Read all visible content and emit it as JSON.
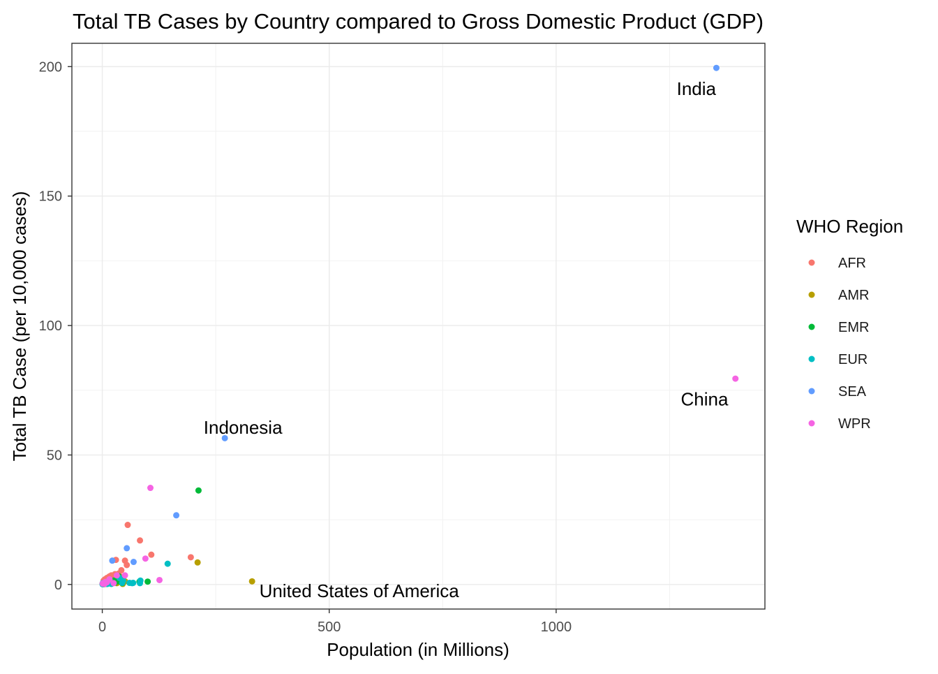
{
  "chart_data": {
    "type": "scatter",
    "title": "Total TB Cases by Country compared to Gross Domestic Product (GDP)",
    "xlabel": "Population (in Millions)",
    "ylabel": "Total TB Case (per 10,000 cases)",
    "xlim": [
      -67,
      1460
    ],
    "ylim": [
      -9.5,
      209
    ],
    "x_ticks": [
      0,
      500,
      1000
    ],
    "x_tick_labels": [
      "0",
      "500",
      "1000"
    ],
    "y_ticks": [
      0,
      50,
      100,
      150,
      200
    ],
    "y_tick_labels": [
      "0",
      "50",
      "100",
      "150",
      "200"
    ],
    "grid": true,
    "legend": {
      "title": "WHO Region",
      "position": "right",
      "entries": [
        {
          "name": "AFR",
          "color": "#F8766D"
        },
        {
          "name": "AMR",
          "color": "#B79F00"
        },
        {
          "name": "EMR",
          "color": "#00BA38"
        },
        {
          "name": "EUR",
          "color": "#00BFC4"
        },
        {
          "name": "SEA",
          "color": "#619CFF"
        },
        {
          "name": "WPR",
          "color": "#F564E3"
        }
      ]
    },
    "series": [
      {
        "name": "AFR",
        "points": [
          [
            0.5,
            0.3
          ],
          [
            2,
            0.8
          ],
          [
            3,
            1.5
          ],
          [
            5,
            0.5
          ],
          [
            6,
            2
          ],
          [
            8,
            1
          ],
          [
            10,
            2.5
          ],
          [
            12,
            1.5
          ],
          [
            15,
            3
          ],
          [
            18,
            2
          ],
          [
            20,
            3.5
          ],
          [
            22,
            1
          ],
          [
            25,
            2
          ],
          [
            28,
            1.8
          ],
          [
            30,
            9.5
          ],
          [
            33,
            2.5
          ],
          [
            40,
            3
          ],
          [
            42,
            5.5
          ],
          [
            45,
            1.8
          ],
          [
            50,
            9.2
          ],
          [
            54,
            7.5
          ],
          [
            56,
            23
          ],
          [
            83,
            17
          ],
          [
            108,
            11.5
          ],
          [
            195,
            10.5
          ],
          [
            28,
            4
          ],
          [
            14,
            2.8
          ],
          [
            36,
            4.2
          ],
          [
            9,
            1.2
          ],
          [
            17,
            3.2
          ]
        ]
      },
      {
        "name": "AMR",
        "points": [
          [
            1,
            0.2
          ],
          [
            4,
            0.1
          ],
          [
            8,
            0.5
          ],
          [
            11,
            0.3
          ],
          [
            17,
            0.5
          ],
          [
            20,
            0.3
          ],
          [
            28,
            0.8
          ],
          [
            32,
            0.5
          ],
          [
            45,
            0.2
          ],
          [
            50,
            1.2
          ],
          [
            210,
            8.5
          ],
          [
            330,
            1.2
          ]
        ]
      },
      {
        "name": "EMR",
        "points": [
          [
            2,
            0.2
          ],
          [
            5,
            0.5
          ],
          [
            7,
            0.3
          ],
          [
            10,
            0.2
          ],
          [
            12,
            0.8
          ],
          [
            15,
            0.5
          ],
          [
            17,
            1
          ],
          [
            20,
            0.3
          ],
          [
            25,
            1.5
          ],
          [
            28,
            0.7
          ],
          [
            34,
            2.5
          ],
          [
            36,
            3.2
          ],
          [
            40,
            1
          ],
          [
            42,
            2
          ],
          [
            44,
            0.5
          ],
          [
            82,
            1.1
          ],
          [
            100,
            1.1
          ],
          [
            212,
            36.3
          ]
        ]
      },
      {
        "name": "EUR",
        "points": [
          [
            0.5,
            0.1
          ],
          [
            1,
            0.2
          ],
          [
            2,
            0.1
          ],
          [
            3,
            0.3
          ],
          [
            5,
            0.4
          ],
          [
            9,
            0.3
          ],
          [
            10,
            0.5
          ],
          [
            11,
            0.2
          ],
          [
            17,
            0.4
          ],
          [
            20,
            0.2
          ],
          [
            38,
            2.5
          ],
          [
            44,
            0.6
          ],
          [
            46,
            1.5
          ],
          [
            60,
            0.6
          ],
          [
            66,
            0.5
          ],
          [
            68,
            0.6
          ],
          [
            83,
            0.5
          ],
          [
            84,
            1.5
          ],
          [
            144,
            8
          ]
        ]
      },
      {
        "name": "SEA",
        "points": [
          [
            1,
            0.5
          ],
          [
            12,
            1.2
          ],
          [
            22,
            9.2
          ],
          [
            54,
            14
          ],
          [
            69,
            8.7
          ],
          [
            163,
            26.7
          ],
          [
            270,
            56.5
          ],
          [
            1353,
            199.5
          ]
        ]
      },
      {
        "name": "WPR",
        "points": [
          [
            1,
            0.3
          ],
          [
            4,
            0.5
          ],
          [
            5,
            0.2
          ],
          [
            7,
            1
          ],
          [
            10,
            0.8
          ],
          [
            16,
            2
          ],
          [
            25,
            0.5
          ],
          [
            32,
            3.5
          ],
          [
            50,
            3.5
          ],
          [
            95,
            10
          ],
          [
            106,
            37.3
          ],
          [
            126,
            1.7
          ],
          [
            1395,
            79.5
          ]
        ]
      }
    ],
    "annotations": [
      {
        "text": "India",
        "x": 1309,
        "y": 191.5,
        "anchor": "middle"
      },
      {
        "text": "China",
        "x": 1327,
        "y": 71.5,
        "anchor": "middle"
      },
      {
        "text": "Indonesia",
        "x": 310,
        "y": 60.7,
        "anchor": "middle"
      },
      {
        "text": "United States of America",
        "x": 346,
        "y": -2.5,
        "anchor": "start"
      }
    ]
  }
}
